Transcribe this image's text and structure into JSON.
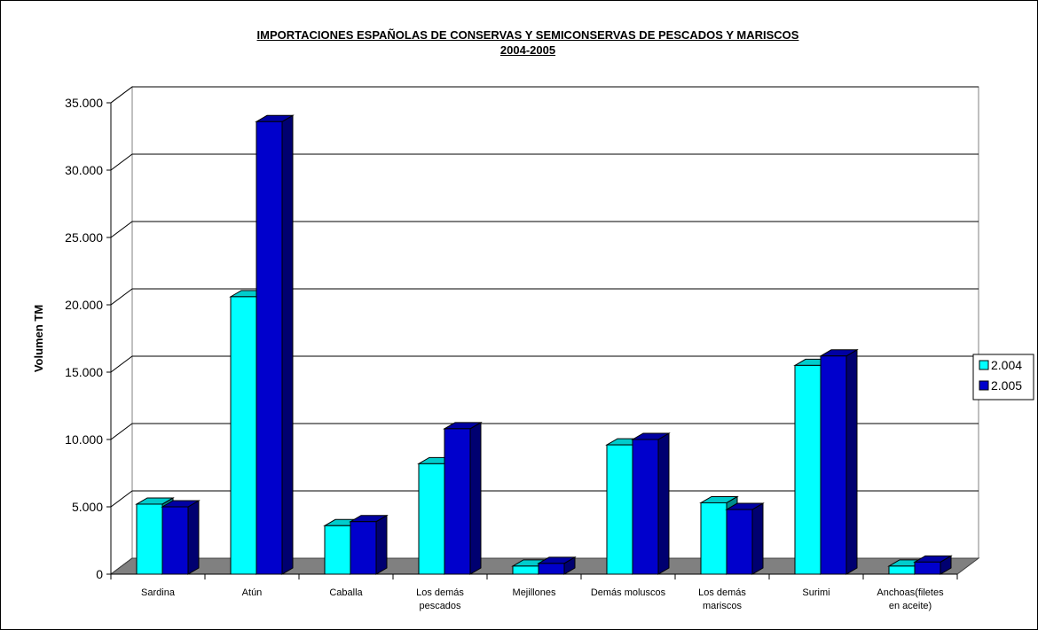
{
  "chart_data": {
    "type": "bar",
    "title": "IMPORTACIONES ESPAÑOLAS DE CONSERVAS Y SEMICONSERVAS DE PESCADOS Y MARISCOS",
    "subtitle": "2004-2005",
    "ylabel": "Volumen TM",
    "xlabel": "",
    "ylim": [
      0,
      35000
    ],
    "yticks": [
      "0",
      "5.000",
      "10.000",
      "15.000",
      "20.000",
      "25.000",
      "30.000",
      "35.000"
    ],
    "categories": [
      [
        "Sardina"
      ],
      [
        "Atún"
      ],
      [
        "Caballa"
      ],
      [
        "Los demás",
        "pescados"
      ],
      [
        "Mejillones"
      ],
      [
        "Demás moluscos"
      ],
      [
        "Los demás",
        "mariscos"
      ],
      [
        "Surimi"
      ],
      [
        "Anchoas(filetes",
        "en aceite)"
      ]
    ],
    "series": [
      {
        "name": "2.004",
        "color": "#00FFFF",
        "values": [
          5200,
          20600,
          3600,
          8200,
          600,
          9600,
          5300,
          15500,
          600
        ]
      },
      {
        "name": "2.005",
        "color": "#0000CC",
        "values": [
          5000,
          33600,
          3900,
          10800,
          800,
          10000,
          4800,
          16200,
          900
        ]
      }
    ],
    "grid": true,
    "legend": "right"
  }
}
